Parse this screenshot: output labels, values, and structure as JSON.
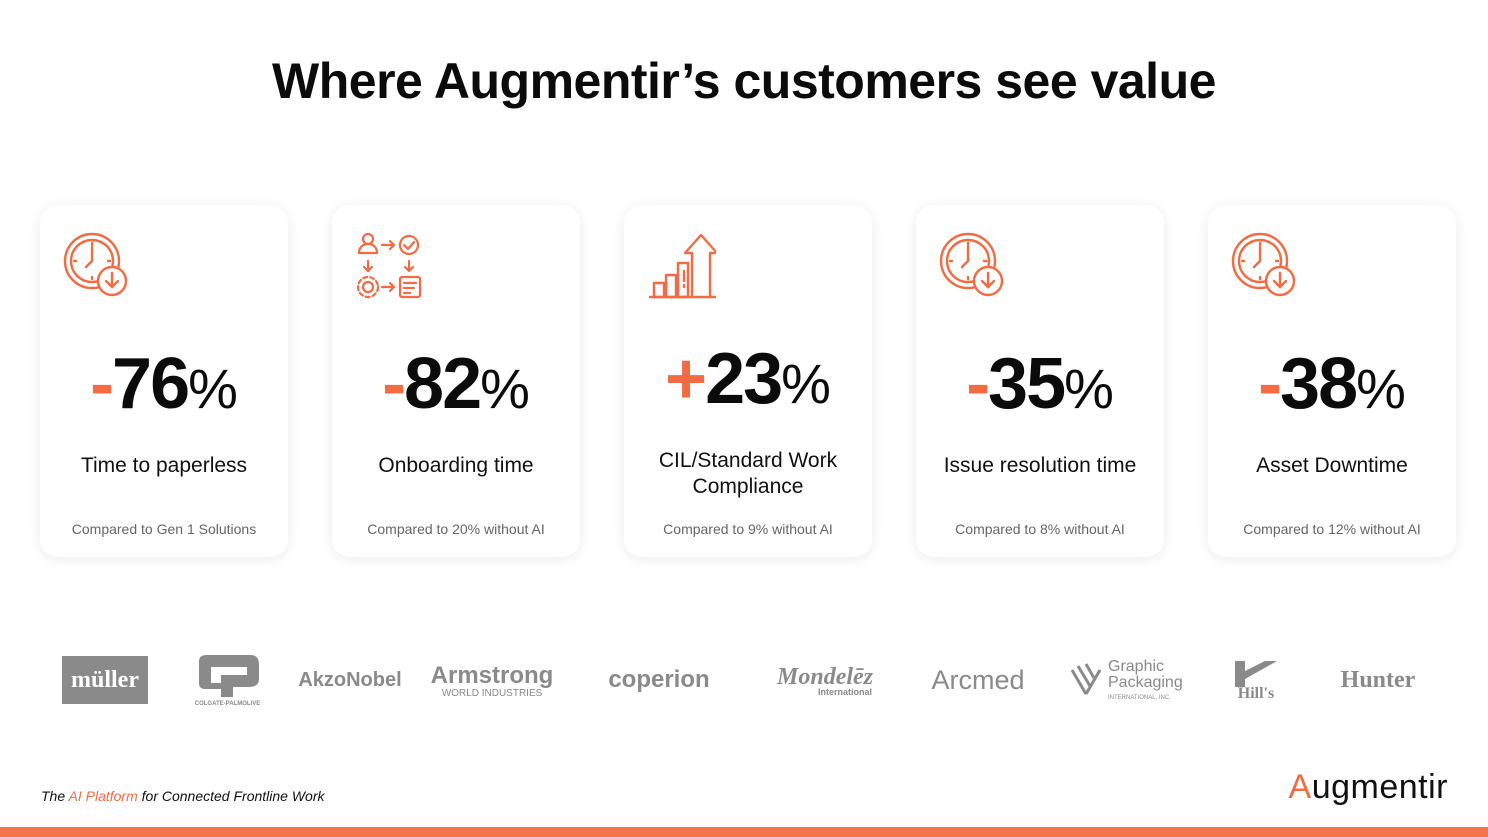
{
  "title": "Where Augmentir’s customers see value",
  "cards": [
    {
      "icon": "clock-down-icon",
      "sign": "-",
      "value": "76",
      "unit": "%",
      "label": "Time to paperless",
      "note": "Compared to Gen 1 Solutions"
    },
    {
      "icon": "workflow-icon",
      "sign": "-",
      "value": "82",
      "unit": "%",
      "label": "Onboarding time",
      "note": "Compared to 20% without AI"
    },
    {
      "icon": "growth-chart-icon",
      "sign": "+",
      "value": "23",
      "unit": "%",
      "label": "CIL/Standard Work Compliance",
      "note": "Compared to 9% without AI"
    },
    {
      "icon": "clock-down-icon",
      "sign": "-",
      "value": "35",
      "unit": "%",
      "label": "Issue resolution time",
      "note": "Compared to 8% without AI"
    },
    {
      "icon": "clock-down-icon",
      "sign": "-",
      "value": "38",
      "unit": "%",
      "label": "Asset Downtime",
      "note": "Compared to 12% without AI"
    }
  ],
  "logos": [
    {
      "name": "müller"
    },
    {
      "name": "COLGATE-PALMOLIVE"
    },
    {
      "name": "AkzoNobel"
    },
    {
      "name": "Armstrong",
      "sub": "WORLD INDUSTRIES"
    },
    {
      "name": "coperion"
    },
    {
      "name": "Mondelēz",
      "sub": "International"
    },
    {
      "name": "Arcmed"
    },
    {
      "name": "Graphic Packaging",
      "sub": "INTERNATIONAL, INC."
    },
    {
      "name": "Hill's"
    },
    {
      "name": "Hunter"
    }
  ],
  "footer": {
    "tagline_pre": "The ",
    "tagline_highlight": "AI Platform",
    "tagline_post": " for Connected Frontline Work",
    "brand_first": "A",
    "brand_rest": "ugmentir"
  },
  "colors": {
    "accent": "#f26b43",
    "text": "#111111",
    "muted": "#666666",
    "logo_gray": "#8a8a8a"
  }
}
